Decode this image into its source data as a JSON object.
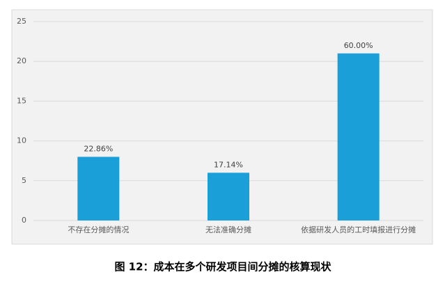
{
  "chart_data": {
    "type": "bar",
    "caption": "图 12：成本在多个研发项目间分摊的核算现状",
    "categories": [
      "不存在分摊的情况",
      "无法准确分摊",
      "依据研发人员的工时填报进行分摊"
    ],
    "values": [
      8,
      6,
      21
    ],
    "value_labels": [
      "22.86%",
      "17.14%",
      "60.00%"
    ],
    "color": "#1a9fd9",
    "ylim": [
      0,
      25
    ],
    "yticks": [
      0,
      5,
      10,
      15,
      20,
      25
    ],
    "grid": true
  }
}
